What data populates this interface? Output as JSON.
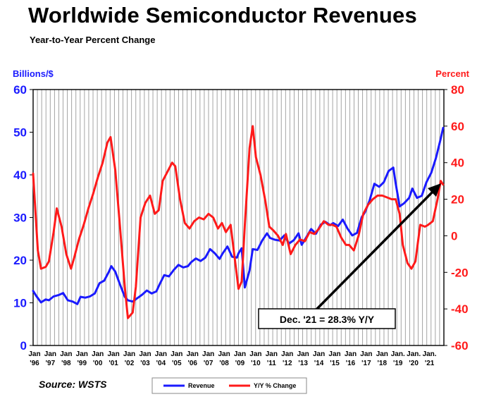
{
  "chart_data": {
    "type": "line",
    "title": "Worldwide Semiconductor Revenues",
    "subtitle": "Year-to-Year Percent Change",
    "source": "Source: WSTS",
    "y_left_label": "Billions/$",
    "y_right_label": "Percent",
    "y_left_ticks": [
      "60",
      "50",
      "40",
      "30",
      "20",
      "10",
      "0"
    ],
    "y_right_ticks": [
      "80",
      "60",
      "40",
      "20",
      "0",
      "-20",
      "-40",
      "-60"
    ],
    "y_left_lim": [
      0,
      60
    ],
    "y_right_lim": [
      -60,
      80
    ],
    "x_lim": [
      1996.0,
      2022.0
    ],
    "x_tick_top": [
      "Jan",
      "Jan",
      "Jan",
      "Jan",
      "Jan",
      "Jan",
      "Jan",
      "Jan",
      "Jan",
      "Jan",
      "Jan",
      "Jan",
      "Jan",
      "Jan",
      "Jan",
      "Jan",
      "Jan",
      "Jan",
      "Jan",
      "Jan",
      "Jan",
      "Jan",
      "Jan",
      "Jan.",
      "Jan.",
      "Jan."
    ],
    "x_tick_bottom": [
      "'96",
      "'97",
      "'98",
      "'99",
      "'00",
      "'01",
      "'02",
      "'03",
      "'04",
      "'05",
      "'06",
      "'07",
      "'08",
      "'09",
      "'10",
      "'11",
      "'12",
      "'13",
      "'14",
      "'15",
      "'16",
      "'17",
      "'18",
      "'19",
      "'20",
      "'21"
    ],
    "grid": "vertical",
    "legend_position": "bottom",
    "annotation": "Dec. '21 = 28.3% Y/Y",
    "colors": {
      "revenue": "#1a1aff",
      "change": "#ff1a1a",
      "grid": "#9a9a9a"
    },
    "series": [
      {
        "name": "Revenue",
        "axis": "left",
        "x": [
          1996.0,
          1996.2,
          1996.5,
          1996.8,
          1997.0,
          1997.3,
          1997.6,
          1997.9,
          1998.2,
          1998.5,
          1998.8,
          1999.0,
          1999.3,
          1999.6,
          1999.9,
          2000.2,
          2000.5,
          2000.8,
          2000.95,
          2001.2,
          2001.5,
          2001.8,
          2002.0,
          2002.3,
          2002.6,
          2002.9,
          2003.2,
          2003.5,
          2003.8,
          2004.0,
          2004.3,
          2004.6,
          2004.9,
          2005.2,
          2005.5,
          2005.8,
          2006.0,
          2006.3,
          2006.6,
          2006.9,
          2007.2,
          2007.5,
          2007.8,
          2008.0,
          2008.3,
          2008.6,
          2008.9,
          2009.0,
          2009.2,
          2009.4,
          2009.7,
          2009.9,
          2010.2,
          2010.5,
          2010.8,
          2011.0,
          2011.3,
          2011.6,
          2011.9,
          2012.2,
          2012.5,
          2012.8,
          2013.0,
          2013.3,
          2013.6,
          2013.9,
          2014.2,
          2014.5,
          2014.8,
          2015.0,
          2015.3,
          2015.6,
          2015.9,
          2016.2,
          2016.5,
          2016.8,
          2017.0,
          2017.3,
          2017.6,
          2017.9,
          2018.2,
          2018.5,
          2018.8,
          2018.95,
          2019.2,
          2019.5,
          2019.8,
          2020.0,
          2020.3,
          2020.6,
          2020.9,
          2021.2,
          2021.5,
          2021.8,
          2021.95
        ],
        "values": [
          12.8,
          11.6,
          10.1,
          10.8,
          10.6,
          11.5,
          11.8,
          12.3,
          10.6,
          10.3,
          9.7,
          11.4,
          11.2,
          11.5,
          12.2,
          14.6,
          15.2,
          17.3,
          18.6,
          17.3,
          14.3,
          11.4,
          10.6,
          10.3,
          11.1,
          11.9,
          12.9,
          12.2,
          12.7,
          14.3,
          16.5,
          16.2,
          17.7,
          18.9,
          18.3,
          18.6,
          19.5,
          20.4,
          19.8,
          20.6,
          22.6,
          21.6,
          20.3,
          21.6,
          23.2,
          20.8,
          20.6,
          21.6,
          22.8,
          13.6,
          17.6,
          22.6,
          22.4,
          24.6,
          26.3,
          25.2,
          24.8,
          24.6,
          25.8,
          23.9,
          24.7,
          26.3,
          23.6,
          25.4,
          27.3,
          26.2,
          28.3,
          29.0,
          28.2,
          28.7,
          28.0,
          29.5,
          27.4,
          25.8,
          26.4,
          30.1,
          31.2,
          34.0,
          37.9,
          37.2,
          38.3,
          40.9,
          41.7,
          38.0,
          32.6,
          33.4,
          34.6,
          36.8,
          34.6,
          35.1,
          38.3,
          40.5,
          44.0,
          48.5,
          51.0
        ]
      },
      {
        "name": "Y/Y % Change",
        "axis": "right",
        "x": [
          1996.0,
          1996.3,
          1996.5,
          1996.8,
          1997.0,
          1997.3,
          1997.5,
          1997.8,
          1998.1,
          1998.4,
          1998.6,
          1998.9,
          1999.2,
          1999.5,
          1999.8,
          2000.1,
          2000.4,
          2000.7,
          2000.9,
          2001.2,
          2001.5,
          2001.8,
          2002.0,
          2002.3,
          2002.5,
          2002.8,
          2003.1,
          2003.4,
          2003.7,
          2003.95,
          2004.2,
          2004.5,
          2004.8,
          2005.0,
          2005.3,
          2005.6,
          2005.9,
          2006.2,
          2006.5,
          2006.8,
          2007.1,
          2007.4,
          2007.7,
          2007.95,
          2008.2,
          2008.5,
          2008.8,
          2009.0,
          2009.2,
          2009.4,
          2009.7,
          2009.9,
          2010.1,
          2010.4,
          2010.7,
          2010.95,
          2011.2,
          2011.5,
          2011.8,
          2012.0,
          2012.3,
          2012.6,
          2012.9,
          2013.2,
          2013.5,
          2013.8,
          2014.1,
          2014.4,
          2014.7,
          2014.95,
          2015.2,
          2015.5,
          2015.8,
          2016.0,
          2016.3,
          2016.6,
          2016.9,
          2017.2,
          2017.5,
          2017.8,
          2018.1,
          2018.4,
          2018.7,
          2018.95,
          2019.2,
          2019.4,
          2019.7,
          2019.95,
          2020.2,
          2020.5,
          2020.8,
          2021.0,
          2021.3,
          2021.6,
          2021.8,
          2021.95
        ],
        "values": [
          34,
          -8,
          -18,
          -17,
          -14,
          2,
          15,
          5,
          -10,
          -18,
          -12,
          -2,
          6,
          15,
          23,
          32,
          40,
          51,
          54,
          36,
          5,
          -28,
          -45,
          -42,
          -28,
          10,
          18,
          22,
          12,
          14,
          30,
          35,
          40,
          38,
          20,
          7,
          4,
          8,
          10,
          9,
          12,
          10,
          4,
          7,
          2,
          6,
          -15,
          -29,
          -25,
          6,
          48,
          60,
          43,
          33,
          19,
          5,
          3,
          0,
          -5,
          1,
          -10,
          -5,
          -2,
          -3,
          2,
          1,
          4,
          8,
          6,
          6,
          5,
          -1,
          -5,
          -5,
          -8,
          0,
          12,
          17,
          20,
          22,
          22,
          21,
          20,
          20,
          12,
          -5,
          -15,
          -18,
          -14,
          6,
          5,
          6,
          8,
          20,
          30,
          28
        ]
      }
    ]
  },
  "legend": {
    "revenue_label": "Revenue",
    "change_label": "Y/Y % Change"
  }
}
